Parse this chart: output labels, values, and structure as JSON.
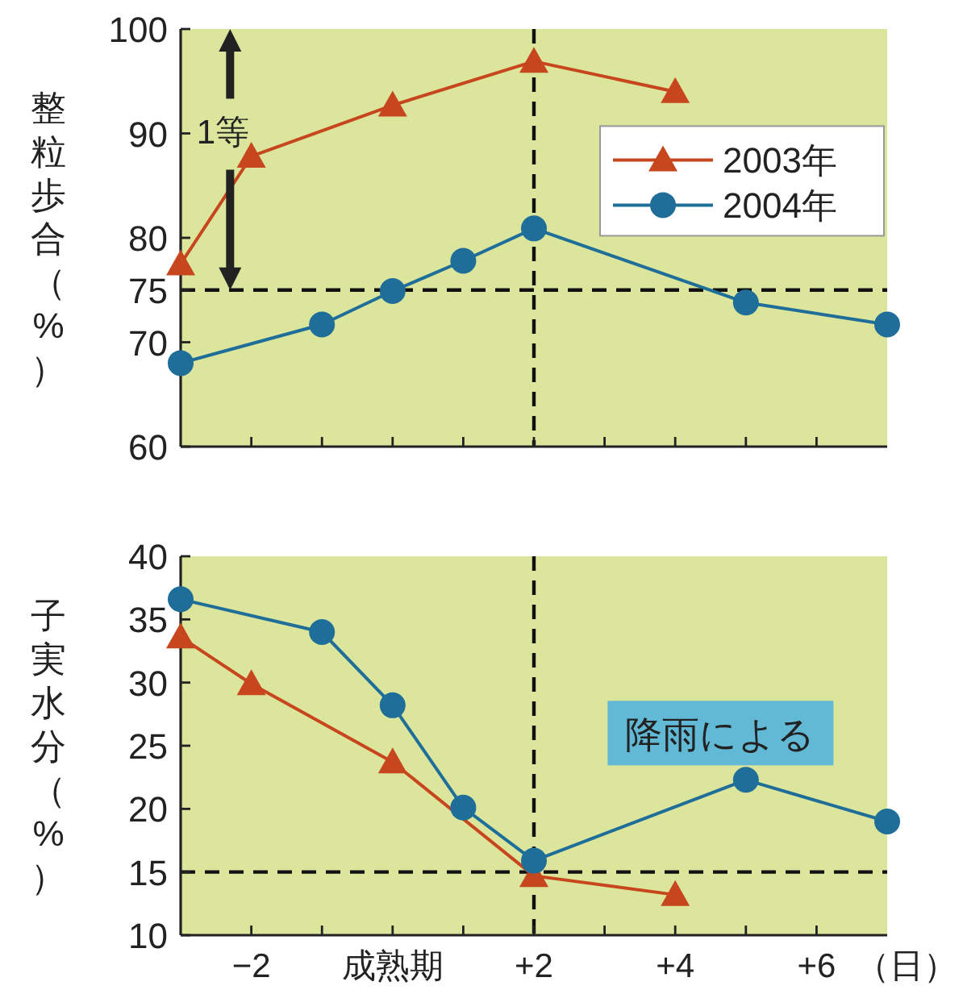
{
  "chart_data": [
    {
      "type": "line",
      "ylabel": "整粒歩合（%）",
      "xlim": [
        -3,
        7
      ],
      "xticks": [
        {
          "value": -2,
          "label": null
        },
        {
          "value": -1,
          "label": null
        },
        {
          "value": 0,
          "label": null
        },
        {
          "value": 1,
          "label": null
        },
        {
          "value": 2,
          "label": null
        },
        {
          "value": 3,
          "label": null
        },
        {
          "value": 4,
          "label": null
        },
        {
          "value": 5,
          "label": null
        },
        {
          "value": 6,
          "label": null
        }
      ],
      "ylim": [
        60,
        100
      ],
      "yticks": [
        60,
        70,
        75,
        80,
        90,
        100
      ],
      "tick_labels": "y",
      "legend": "right",
      "series": [
        {
          "name": "2003年",
          "color": "#c8461e",
          "marker": "triangle",
          "x": [
            -3,
            -2,
            0,
            2,
            4
          ],
          "values": [
            77.5,
            87.8,
            92.7,
            96.9,
            94.0
          ]
        },
        {
          "name": "2004年",
          "color": "#1f6e99",
          "marker": "circle",
          "x": [
            -3,
            -1,
            0,
            1,
            2,
            5,
            7
          ],
          "values": [
            68.0,
            71.7,
            74.9,
            77.8,
            80.9,
            73.8,
            71.7
          ]
        }
      ],
      "ref_lines": [
        {
          "axis": "y",
          "value": 75,
          "line_style": "dashed"
        },
        {
          "axis": "x",
          "value": 2,
          "line_style": "dashed"
        }
      ],
      "annotations": [
        "1等"
      ]
    },
    {
      "type": "line",
      "ylabel": "子実水分（%）",
      "xlabel": "（日）",
      "xlim": [
        -3,
        7
      ],
      "xticks": [
        {
          "value": -2,
          "label": "−2"
        },
        {
          "value": -1,
          "label": null
        },
        {
          "value": 0,
          "label": "成熟期"
        },
        {
          "value": 1,
          "label": null
        },
        {
          "value": 2,
          "label": "+2"
        },
        {
          "value": 3,
          "label": null
        },
        {
          "value": 4,
          "label": "+4"
        },
        {
          "value": 5,
          "label": null
        },
        {
          "value": 6,
          "label": "+6"
        }
      ],
      "ylim": [
        10,
        40
      ],
      "yticks": [
        10,
        15,
        20,
        25,
        30,
        35,
        40
      ],
      "series": [
        {
          "color": "#c8461e",
          "marker": "triangle",
          "x": [
            -3,
            -2,
            0,
            2,
            4
          ],
          "values": [
            33.6,
            29.9,
            23.7,
            14.7,
            13.2
          ]
        },
        {
          "color": "#1f6e99",
          "marker": "circle",
          "x": [
            -3,
            -1,
            0,
            1,
            2,
            5,
            7
          ],
          "values": [
            36.6,
            34.0,
            28.2,
            20.1,
            15.9,
            22.3,
            19.0
          ]
        }
      ],
      "ref_lines": [
        {
          "axis": "y",
          "value": 15,
          "line_style": "dashed"
        },
        {
          "axis": "x",
          "value": 2,
          "line_style": "dashed"
        }
      ],
      "annotations": [
        "降雨による"
      ]
    }
  ]
}
